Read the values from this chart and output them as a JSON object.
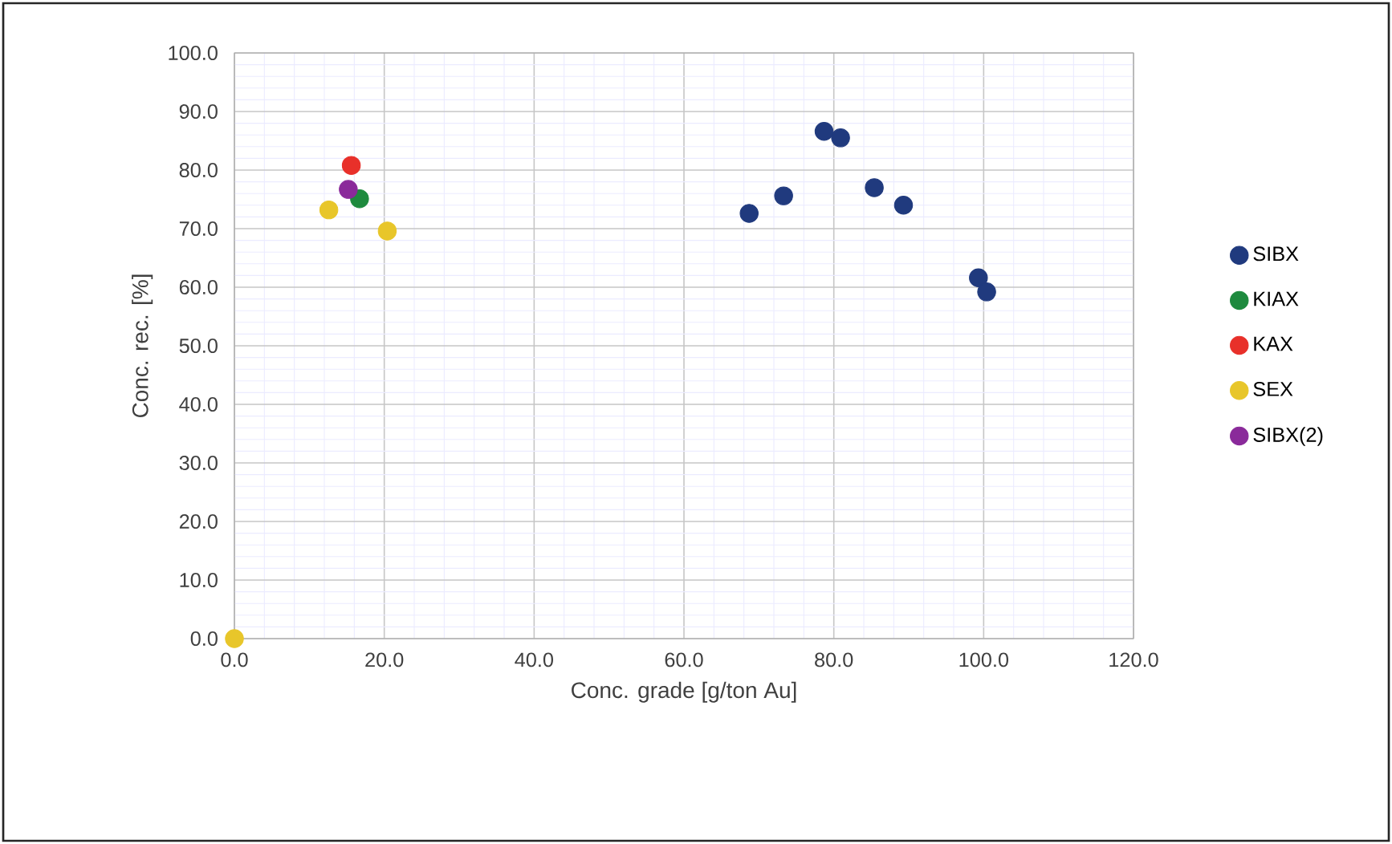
{
  "chart_data": {
    "type": "scatter",
    "xlabel": "Conc. grade [g/ton Au]",
    "ylabel": "Conc. rec. [%]",
    "xlim": [
      0,
      120
    ],
    "ylim": [
      0,
      100
    ],
    "xticks": [
      {
        "value": 0,
        "label": "0.0"
      },
      {
        "value": 20,
        "label": "20.0"
      },
      {
        "value": 40,
        "label": "40.0"
      },
      {
        "value": 60,
        "label": "60.0"
      },
      {
        "value": 80,
        "label": "80.0"
      },
      {
        "value": 100,
        "label": "100.0"
      },
      {
        "value": 120,
        "label": "120.0"
      }
    ],
    "yticks": [
      {
        "value": 0,
        "label": "0.0"
      },
      {
        "value": 10,
        "label": "10.0"
      },
      {
        "value": 20,
        "label": "20.0"
      },
      {
        "value": 30,
        "label": "30.0"
      },
      {
        "value": 40,
        "label": "40.0"
      },
      {
        "value": 50,
        "label": "50.0"
      },
      {
        "value": 60,
        "label": "60.0"
      },
      {
        "value": 70,
        "label": "70.0"
      },
      {
        "value": 80,
        "label": "80.0"
      },
      {
        "value": 90,
        "label": "90.0"
      },
      {
        "value": 100,
        "label": "100.0"
      }
    ],
    "grid": true,
    "legend": "right",
    "marker": "circle",
    "series": [
      {
        "name": "SIBX",
        "color": "#203a7e",
        "x": [
          68.7,
          73.3,
          78.7,
          80.9,
          85.4,
          89.3,
          99.3,
          100.4
        ],
        "values": [
          72.6,
          75.6,
          86.6,
          85.5,
          77.0,
          74.0,
          61.6,
          59.2
        ]
      },
      {
        "name": "KIAX",
        "color": "#1e8a3e",
        "x": [
          16.7
        ],
        "values": [
          75.1
        ]
      },
      {
        "name": "KAX",
        "color": "#e8302a",
        "x": [
          15.6
        ],
        "values": [
          80.8
        ]
      },
      {
        "name": "SEX",
        "color": "#e8c62a",
        "x": [
          0,
          12.6,
          20.4
        ],
        "values": [
          0,
          73.2,
          69.6
        ]
      },
      {
        "name": "SIBX(2)",
        "color": "#8a2a9a",
        "x": [
          15.2
        ],
        "values": [
          76.7
        ]
      }
    ]
  }
}
